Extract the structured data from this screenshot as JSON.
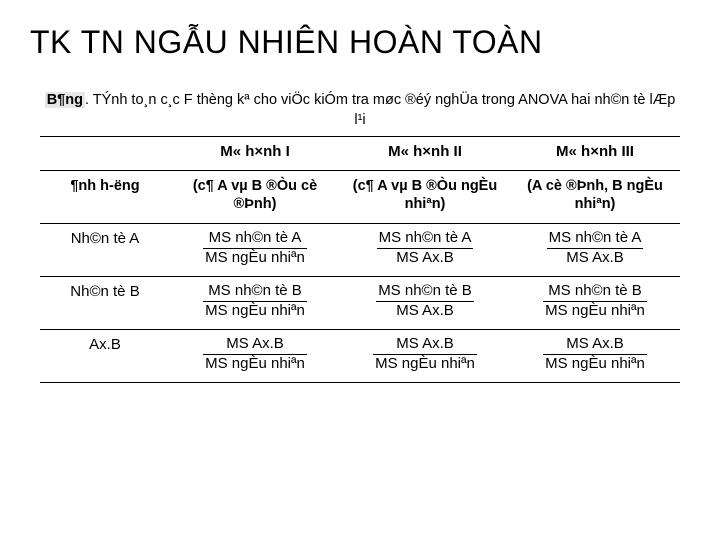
{
  "title": "TK TN NGẪU NHIÊN HOÀN TOÀN",
  "caption_lead": "B¶ng",
  "caption_rest": ". TÝnh to¸n c¸c F thèng kª cho viÖc kiÓm tra møc ®éý nghÜa trong ANOVA hai nh©n tè lÆp l¹i",
  "header_row1": [
    "",
    "M« h×nh I",
    "M« h×nh II",
    "M« h×nh III"
  ],
  "header_row2": [
    "¶nh h-ëng",
    "(c¶ A vµ B ®Òu cè ®Þnh)",
    "(c¶ A vµ B ®Òu ngÈu nhiªn)",
    "(A cè ®Þnh, B ngÈu nhiªn)"
  ],
  "rows": [
    {
      "label": "Nh©n tè A",
      "cells": [
        {
          "num": "MS nh©n tè A",
          "den": "MS ngÈu nhiªn"
        },
        {
          "num": "MS nh©n tè A",
          "den": "MS Ax.B"
        },
        {
          "num": "MS nh©n tè A",
          "den": "MS Ax.B"
        }
      ]
    },
    {
      "label": "Nh©n tè B",
      "cells": [
        {
          "num": "MS nh©n tè B",
          "den": "MS ngÈu nhiªn"
        },
        {
          "num": "MS nh©n tè B",
          "den": "MS Ax.B"
        },
        {
          "num": "MS nh©n tè B",
          "den": "MS ngÈu nhiªn"
        }
      ]
    },
    {
      "label": "Ax.B",
      "cells": [
        {
          "num": "MS Ax.B",
          "den": "MS ngÈu nhiªn"
        },
        {
          "num": "MS Ax.B",
          "den": "MS ngÈu nhiªn"
        },
        {
          "num": "MS Ax.B",
          "den": "MS ngÈu nhiªn"
        }
      ]
    }
  ]
}
